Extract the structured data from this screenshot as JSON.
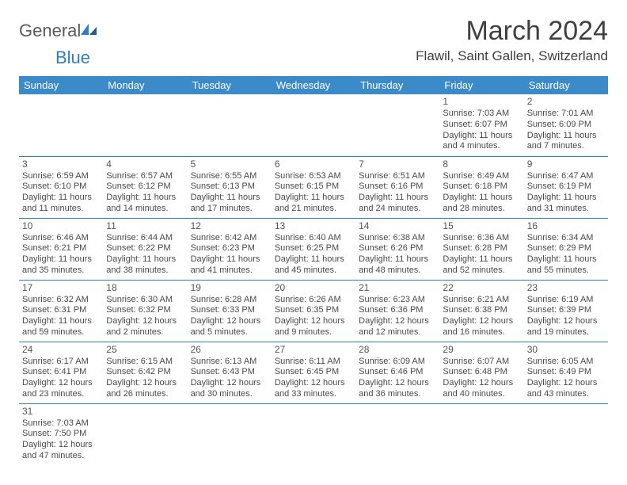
{
  "logo": {
    "text1": "General",
    "text2": "Blue"
  },
  "title": {
    "month": "March 2024",
    "location": "Flawil, Saint Gallen, Switzerland"
  },
  "colors": {
    "header_bg": "#3b8bca",
    "header_fg": "#ffffff",
    "border": "#2f7fc1",
    "text": "#4a4a4a",
    "title_text": "#404040",
    "logo_gray": "#5a5a5a",
    "logo_blue": "#2f7fc1"
  },
  "weekdays": [
    "Sunday",
    "Monday",
    "Tuesday",
    "Wednesday",
    "Thursday",
    "Friday",
    "Saturday"
  ],
  "weeks": [
    [
      null,
      null,
      null,
      null,
      null,
      {
        "n": "1",
        "sr": "Sunrise: 7:03 AM",
        "ss": "Sunset: 6:07 PM",
        "dl": "Daylight: 11 hours and 4 minutes."
      },
      {
        "n": "2",
        "sr": "Sunrise: 7:01 AM",
        "ss": "Sunset: 6:09 PM",
        "dl": "Daylight: 11 hours and 7 minutes."
      }
    ],
    [
      {
        "n": "3",
        "sr": "Sunrise: 6:59 AM",
        "ss": "Sunset: 6:10 PM",
        "dl": "Daylight: 11 hours and 11 minutes."
      },
      {
        "n": "4",
        "sr": "Sunrise: 6:57 AM",
        "ss": "Sunset: 6:12 PM",
        "dl": "Daylight: 11 hours and 14 minutes."
      },
      {
        "n": "5",
        "sr": "Sunrise: 6:55 AM",
        "ss": "Sunset: 6:13 PM",
        "dl": "Daylight: 11 hours and 17 minutes."
      },
      {
        "n": "6",
        "sr": "Sunrise: 6:53 AM",
        "ss": "Sunset: 6:15 PM",
        "dl": "Daylight: 11 hours and 21 minutes."
      },
      {
        "n": "7",
        "sr": "Sunrise: 6:51 AM",
        "ss": "Sunset: 6:16 PM",
        "dl": "Daylight: 11 hours and 24 minutes."
      },
      {
        "n": "8",
        "sr": "Sunrise: 6:49 AM",
        "ss": "Sunset: 6:18 PM",
        "dl": "Daylight: 11 hours and 28 minutes."
      },
      {
        "n": "9",
        "sr": "Sunrise: 6:47 AM",
        "ss": "Sunset: 6:19 PM",
        "dl": "Daylight: 11 hours and 31 minutes."
      }
    ],
    [
      {
        "n": "10",
        "sr": "Sunrise: 6:46 AM",
        "ss": "Sunset: 6:21 PM",
        "dl": "Daylight: 11 hours and 35 minutes."
      },
      {
        "n": "11",
        "sr": "Sunrise: 6:44 AM",
        "ss": "Sunset: 6:22 PM",
        "dl": "Daylight: 11 hours and 38 minutes."
      },
      {
        "n": "12",
        "sr": "Sunrise: 6:42 AM",
        "ss": "Sunset: 6:23 PM",
        "dl": "Daylight: 11 hours and 41 minutes."
      },
      {
        "n": "13",
        "sr": "Sunrise: 6:40 AM",
        "ss": "Sunset: 6:25 PM",
        "dl": "Daylight: 11 hours and 45 minutes."
      },
      {
        "n": "14",
        "sr": "Sunrise: 6:38 AM",
        "ss": "Sunset: 6:26 PM",
        "dl": "Daylight: 11 hours and 48 minutes."
      },
      {
        "n": "15",
        "sr": "Sunrise: 6:36 AM",
        "ss": "Sunset: 6:28 PM",
        "dl": "Daylight: 11 hours and 52 minutes."
      },
      {
        "n": "16",
        "sr": "Sunrise: 6:34 AM",
        "ss": "Sunset: 6:29 PM",
        "dl": "Daylight: 11 hours and 55 minutes."
      }
    ],
    [
      {
        "n": "17",
        "sr": "Sunrise: 6:32 AM",
        "ss": "Sunset: 6:31 PM",
        "dl": "Daylight: 11 hours and 59 minutes."
      },
      {
        "n": "18",
        "sr": "Sunrise: 6:30 AM",
        "ss": "Sunset: 6:32 PM",
        "dl": "Daylight: 12 hours and 2 minutes."
      },
      {
        "n": "19",
        "sr": "Sunrise: 6:28 AM",
        "ss": "Sunset: 6:33 PM",
        "dl": "Daylight: 12 hours and 5 minutes."
      },
      {
        "n": "20",
        "sr": "Sunrise: 6:26 AM",
        "ss": "Sunset: 6:35 PM",
        "dl": "Daylight: 12 hours and 9 minutes."
      },
      {
        "n": "21",
        "sr": "Sunrise: 6:23 AM",
        "ss": "Sunset: 6:36 PM",
        "dl": "Daylight: 12 hours and 12 minutes."
      },
      {
        "n": "22",
        "sr": "Sunrise: 6:21 AM",
        "ss": "Sunset: 6:38 PM",
        "dl": "Daylight: 12 hours and 16 minutes."
      },
      {
        "n": "23",
        "sr": "Sunrise: 6:19 AM",
        "ss": "Sunset: 6:39 PM",
        "dl": "Daylight: 12 hours and 19 minutes."
      }
    ],
    [
      {
        "n": "24",
        "sr": "Sunrise: 6:17 AM",
        "ss": "Sunset: 6:41 PM",
        "dl": "Daylight: 12 hours and 23 minutes."
      },
      {
        "n": "25",
        "sr": "Sunrise: 6:15 AM",
        "ss": "Sunset: 6:42 PM",
        "dl": "Daylight: 12 hours and 26 minutes."
      },
      {
        "n": "26",
        "sr": "Sunrise: 6:13 AM",
        "ss": "Sunset: 6:43 PM",
        "dl": "Daylight: 12 hours and 30 minutes."
      },
      {
        "n": "27",
        "sr": "Sunrise: 6:11 AM",
        "ss": "Sunset: 6:45 PM",
        "dl": "Daylight: 12 hours and 33 minutes."
      },
      {
        "n": "28",
        "sr": "Sunrise: 6:09 AM",
        "ss": "Sunset: 6:46 PM",
        "dl": "Daylight: 12 hours and 36 minutes."
      },
      {
        "n": "29",
        "sr": "Sunrise: 6:07 AM",
        "ss": "Sunset: 6:48 PM",
        "dl": "Daylight: 12 hours and 40 minutes."
      },
      {
        "n": "30",
        "sr": "Sunrise: 6:05 AM",
        "ss": "Sunset: 6:49 PM",
        "dl": "Daylight: 12 hours and 43 minutes."
      }
    ],
    [
      {
        "n": "31",
        "sr": "Sunrise: 7:03 AM",
        "ss": "Sunset: 7:50 PM",
        "dl": "Daylight: 12 hours and 47 minutes."
      },
      null,
      null,
      null,
      null,
      null,
      null
    ]
  ]
}
